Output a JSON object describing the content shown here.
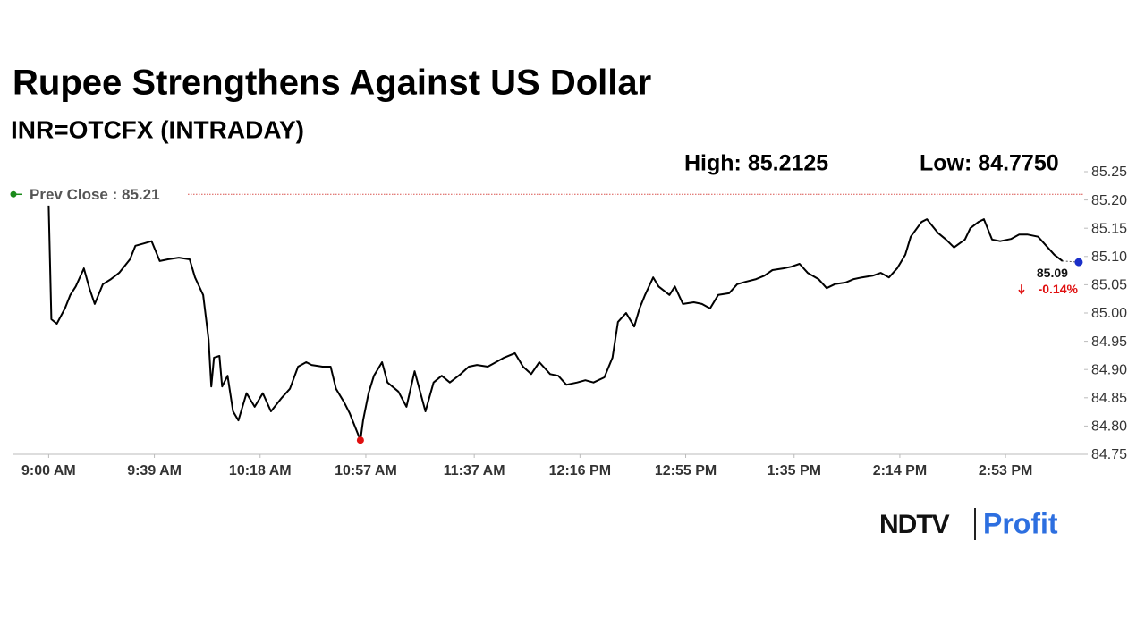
{
  "chart_data": {
    "type": "line",
    "title": "Rupee Strengthens Against US Dollar",
    "subtitle": "INR=OTCFX (INTRADAY)",
    "high_label": "High: 85.2125",
    "low_label": "Low: 84.7750",
    "color": "#000000",
    "x": [
      "9:00 AM",
      "9:01 AM",
      "9:03 AM",
      "9:06 AM",
      "9:08 AM",
      "9:10 AM",
      "9:13 AM",
      "9:15 AM",
      "9:17 AM",
      "9:20 AM",
      "9:23 AM",
      "9:26 AM",
      "9:30 AM",
      "9:32 AM",
      "9:35 AM",
      "9:38 AM",
      "9:41 AM",
      "9:44 AM",
      "9:48 AM",
      "9:52 AM",
      "9:54 AM",
      "9:57 AM",
      "9:59 AM",
      "10:00 AM",
      "10:01 AM",
      "10:03 AM",
      "10:04 AM",
      "10:06 AM",
      "10:08 AM",
      "10:10 AM",
      "10:13 AM",
      "10:16 AM",
      "10:19 AM",
      "10:22 AM",
      "10:26 AM",
      "10:29 AM",
      "10:32 AM",
      "10:35 AM",
      "10:37 AM",
      "10:41 AM",
      "10:44 AM",
      "10:46 AM",
      "10:49 AM",
      "10:51 AM",
      "10:55 AM",
      "10:56 AM",
      "10:58 AM",
      "11:00 AM",
      "11:03 AM",
      "11:05 AM",
      "11:09 AM",
      "11:12 AM",
      "11:15 AM",
      "11:19 AM",
      "11:22 AM",
      "11:25 AM",
      "11:28 AM",
      "11:32 AM",
      "11:35 AM",
      "11:38 AM",
      "11:42 AM",
      "11:45 AM",
      "11:48 AM",
      "11:52 AM",
      "11:55 AM",
      "11:58 AM",
      "12:01 PM",
      "12:05 PM",
      "12:08 PM",
      "12:11 PM",
      "12:15 PM",
      "12:18 PM",
      "12:21 PM",
      "12:25 PM",
      "12:28 PM",
      "12:30 PM",
      "12:33 PM",
      "12:36 PM",
      "12:38 PM",
      "12:40 PM",
      "12:43 PM",
      "12:45 PM",
      "12:49 PM",
      "12:51 PM",
      "12:54 PM",
      "12:58 PM",
      "1:01 PM",
      "1:04 PM",
      "1:07 PM",
      "1:11 PM",
      "1:14 PM",
      "1:17 PM",
      "1:21 PM",
      "1:24 PM",
      "1:27 PM",
      "1:31 PM",
      "1:34 PM",
      "1:37 PM",
      "1:40 PM",
      "1:44 PM",
      "1:47 PM",
      "1:50 PM",
      "1:54 PM",
      "1:57 PM",
      "2:00 PM",
      "2:04 PM",
      "2:07 PM",
      "2:10 PM",
      "2:13 PM",
      "2:16 PM",
      "2:18 PM",
      "2:22 PM",
      "2:24 PM",
      "2:28 PM",
      "2:31 PM",
      "2:34 PM",
      "2:38 PM",
      "2:40 PM",
      "2:43 PM",
      "2:45 PM",
      "2:48 PM",
      "2:51 PM",
      "2:55 PM",
      "2:58 PM",
      "3:01 PM",
      "3:05 PM",
      "3:08 PM",
      "3:11 PM",
      "3:14 PM"
    ],
    "values": [
      85.19,
      84.989,
      84.981,
      85.008,
      85.032,
      85.047,
      85.079,
      85.044,
      85.016,
      85.051,
      85.06,
      85.071,
      85.095,
      85.119,
      85.123,
      85.127,
      85.092,
      85.095,
      85.098,
      85.095,
      85.063,
      85.032,
      84.953,
      84.87,
      84.921,
      84.924,
      84.87,
      84.889,
      84.826,
      84.81,
      84.858,
      84.834,
      84.858,
      84.826,
      84.85,
      84.866,
      84.905,
      84.913,
      84.908,
      84.905,
      84.905,
      84.866,
      84.842,
      84.823,
      84.775,
      84.81,
      84.858,
      84.889,
      84.913,
      84.877,
      84.861,
      84.834,
      84.897,
      84.826,
      84.877,
      84.889,
      84.877,
      84.892,
      84.905,
      84.908,
      84.905,
      84.913,
      84.921,
      84.929,
      84.905,
      84.892,
      84.913,
      84.892,
      84.889,
      84.873,
      84.877,
      84.881,
      84.877,
      84.886,
      84.921,
      84.984,
      85.0,
      84.976,
      85.008,
      85.032,
      85.063,
      85.047,
      85.032,
      85.047,
      85.016,
      85.019,
      85.016,
      85.008,
      85.032,
      85.035,
      85.051,
      85.055,
      85.06,
      85.066,
      85.076,
      85.079,
      85.082,
      85.087,
      85.071,
      85.06,
      85.044,
      85.051,
      85.054,
      85.06,
      85.063,
      85.066,
      85.071,
      85.063,
      85.079,
      85.103,
      85.135,
      85.161,
      85.166,
      85.142,
      85.13,
      85.116,
      85.13,
      85.15,
      85.161,
      85.166,
      85.13,
      85.127,
      85.131,
      85.139,
      85.139,
      85.135,
      85.119,
      85.103,
      85.092
    ],
    "xlim": [
      "8:47 AM",
      "3:22 PM"
    ],
    "xticks": [
      "9:00 AM",
      "9:39 AM",
      "10:18 AM",
      "10:57 AM",
      "11:37 AM",
      "12:16 PM",
      "12:55 PM",
      "1:35 PM",
      "2:14 PM",
      "2:53 PM"
    ],
    "ylim": [
      84.75,
      85.25
    ],
    "yticks": [
      85.25,
      {
        "value": 85.2,
        "label": "85.20"
      },
      85.15,
      {
        "value": 85.1,
        "label": "85.10"
      },
      85.05,
      {
        "value": 85,
        "label": "85.00"
      },
      84.95,
      {
        "value": 84.9,
        "label": "84.90"
      },
      84.85,
      {
        "value": 84.8,
        "label": "84.80"
      },
      84.75
    ],
    "prev_close": {
      "label": "Prev Close : 85.21",
      "value": 85.21,
      "color": "#d9534f"
    },
    "low_point": {
      "x": "10:55 AM",
      "value": 84.775,
      "color": "#e01010"
    },
    "last_point": {
      "x": "3:20 PM",
      "value": 85.09,
      "label": "85.09",
      "change": "-0.14%",
      "color": "#1a2fc9"
    }
  },
  "logo": {
    "brand": "NDTV",
    "product": "Profit"
  }
}
